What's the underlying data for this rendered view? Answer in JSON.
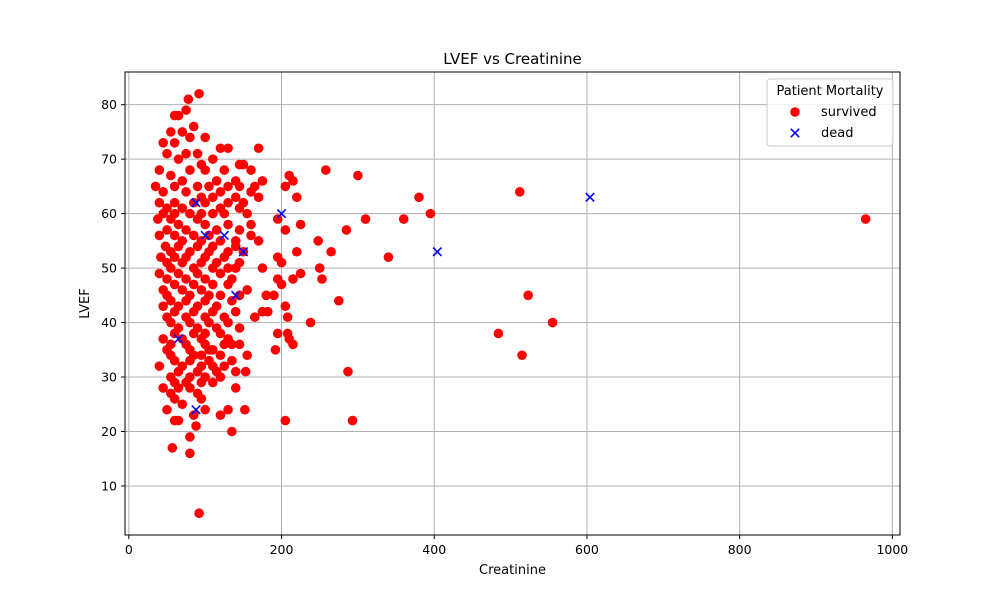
{
  "chart_data": {
    "type": "scatter",
    "title": "LVEF vs Creatinine",
    "xlabel": "Creatinine",
    "ylabel": "LVEF",
    "xlim": [
      -5,
      1010
    ],
    "ylim": [
      1,
      86
    ],
    "xticks": [
      0,
      200,
      400,
      600,
      800,
      1000
    ],
    "yticks": [
      10,
      20,
      30,
      40,
      50,
      60,
      70,
      80
    ],
    "grid": true,
    "legend": {
      "title": "Patient Mortality",
      "position": "top-right"
    },
    "series": [
      {
        "name": "survived",
        "marker": "circle",
        "color": "#ff0000",
        "points": [
          [
            92,
            82
          ],
          [
            78,
            81
          ],
          [
            75,
            79
          ],
          [
            65,
            78
          ],
          [
            60,
            78
          ],
          [
            85,
            76
          ],
          [
            55,
            75
          ],
          [
            70,
            75
          ],
          [
            80,
            74
          ],
          [
            100,
            74
          ],
          [
            45,
            73
          ],
          [
            60,
            73
          ],
          [
            120,
            72
          ],
          [
            130,
            72
          ],
          [
            170,
            72
          ],
          [
            50,
            71
          ],
          [
            75,
            71
          ],
          [
            90,
            71
          ],
          [
            110,
            70
          ],
          [
            65,
            70
          ],
          [
            95,
            69
          ],
          [
            145,
            69
          ],
          [
            150,
            69
          ],
          [
            160,
            68
          ],
          [
            40,
            68
          ],
          [
            80,
            68
          ],
          [
            100,
            68
          ],
          [
            125,
            68
          ],
          [
            258,
            68
          ],
          [
            55,
            67
          ],
          [
            210,
            67
          ],
          [
            300,
            67
          ],
          [
            70,
            66
          ],
          [
            115,
            66
          ],
          [
            140,
            66
          ],
          [
            175,
            66
          ],
          [
            215,
            66
          ],
          [
            35,
            65
          ],
          [
            60,
            65
          ],
          [
            90,
            65
          ],
          [
            105,
            65
          ],
          [
            130,
            65
          ],
          [
            145,
            65
          ],
          [
            165,
            65
          ],
          [
            205,
            65
          ],
          [
            45,
            64
          ],
          [
            75,
            64
          ],
          [
            120,
            64
          ],
          [
            160,
            64
          ],
          [
            512,
            64
          ],
          [
            95,
            63
          ],
          [
            110,
            63
          ],
          [
            140,
            63
          ],
          [
            170,
            63
          ],
          [
            220,
            63
          ],
          [
            380,
            63
          ],
          [
            40,
            62
          ],
          [
            60,
            62
          ],
          [
            85,
            62
          ],
          [
            100,
            62
          ],
          [
            130,
            62
          ],
          [
            150,
            62
          ],
          [
            50,
            61
          ],
          [
            70,
            61
          ],
          [
            120,
            61
          ],
          [
            145,
            61
          ],
          [
            155,
            60
          ],
          [
            45,
            60
          ],
          [
            60,
            60
          ],
          [
            80,
            60
          ],
          [
            95,
            60
          ],
          [
            110,
            60
          ],
          [
            125,
            60
          ],
          [
            395,
            60
          ],
          [
            38,
            59
          ],
          [
            55,
            59
          ],
          [
            90,
            59
          ],
          [
            195,
            59
          ],
          [
            310,
            59
          ],
          [
            360,
            59
          ],
          [
            965,
            59
          ],
          [
            65,
            58
          ],
          [
            100,
            58
          ],
          [
            130,
            58
          ],
          [
            160,
            58
          ],
          [
            225,
            58
          ],
          [
            50,
            57
          ],
          [
            75,
            57
          ],
          [
            115,
            57
          ],
          [
            145,
            57
          ],
          [
            205,
            57
          ],
          [
            285,
            57
          ],
          [
            40,
            56
          ],
          [
            60,
            56
          ],
          [
            85,
            56
          ],
          [
            105,
            56
          ],
          [
            160,
            56
          ],
          [
            70,
            55
          ],
          [
            95,
            55
          ],
          [
            120,
            55
          ],
          [
            140,
            55
          ],
          [
            170,
            55
          ],
          [
            248,
            55
          ],
          [
            48,
            54
          ],
          [
            65,
            54
          ],
          [
            90,
            54
          ],
          [
            110,
            54
          ],
          [
            140,
            54
          ],
          [
            55,
            53
          ],
          [
            80,
            53
          ],
          [
            105,
            53
          ],
          [
            130,
            53
          ],
          [
            150,
            53
          ],
          [
            220,
            53
          ],
          [
            265,
            53
          ],
          [
            42,
            52
          ],
          [
            60,
            52
          ],
          [
            75,
            52
          ],
          [
            100,
            52
          ],
          [
            125,
            52
          ],
          [
            195,
            52
          ],
          [
            340,
            52
          ],
          [
            50,
            51
          ],
          [
            70,
            51
          ],
          [
            95,
            51
          ],
          [
            115,
            51
          ],
          [
            145,
            51
          ],
          [
            200,
            51
          ],
          [
            55,
            50
          ],
          [
            85,
            50
          ],
          [
            110,
            50
          ],
          [
            130,
            50
          ],
          [
            140,
            50
          ],
          [
            250,
            50
          ],
          [
            175,
            50
          ],
          [
            40,
            49
          ],
          [
            65,
            49
          ],
          [
            90,
            49
          ],
          [
            120,
            49
          ],
          [
            225,
            49
          ],
          [
            50,
            48
          ],
          [
            75,
            48
          ],
          [
            100,
            48
          ],
          [
            135,
            48
          ],
          [
            195,
            48
          ],
          [
            215,
            48
          ],
          [
            253,
            48
          ],
          [
            60,
            47
          ],
          [
            85,
            47
          ],
          [
            110,
            47
          ],
          [
            130,
            47
          ],
          [
            200,
            47
          ],
          [
            45,
            46
          ],
          [
            70,
            46
          ],
          [
            95,
            46
          ],
          [
            155,
            46
          ],
          [
            50,
            45
          ],
          [
            80,
            45
          ],
          [
            105,
            45
          ],
          [
            120,
            45
          ],
          [
            145,
            45
          ],
          [
            180,
            45
          ],
          [
            190,
            45
          ],
          [
            523,
            45
          ],
          [
            55,
            44
          ],
          [
            75,
            44
          ],
          [
            100,
            44
          ],
          [
            135,
            44
          ],
          [
            275,
            44
          ],
          [
            45,
            43
          ],
          [
            65,
            43
          ],
          [
            90,
            43
          ],
          [
            115,
            43
          ],
          [
            205,
            43
          ],
          [
            60,
            42
          ],
          [
            85,
            42
          ],
          [
            110,
            42
          ],
          [
            140,
            42
          ],
          [
            175,
            42
          ],
          [
            182,
            42
          ],
          [
            50,
            41
          ],
          [
            75,
            41
          ],
          [
            100,
            41
          ],
          [
            125,
            41
          ],
          [
            165,
            41
          ],
          [
            208,
            41
          ],
          [
            55,
            40
          ],
          [
            80,
            40
          ],
          [
            105,
            40
          ],
          [
            130,
            40
          ],
          [
            238,
            40
          ],
          [
            555,
            40
          ],
          [
            65,
            39
          ],
          [
            90,
            39
          ],
          [
            115,
            39
          ],
          [
            145,
            39
          ],
          [
            60,
            38
          ],
          [
            85,
            38
          ],
          [
            100,
            38
          ],
          [
            120,
            38
          ],
          [
            195,
            38
          ],
          [
            208,
            38
          ],
          [
            484,
            38
          ],
          [
            45,
            37
          ],
          [
            70,
            37
          ],
          [
            95,
            37
          ],
          [
            130,
            37
          ],
          [
            210,
            37
          ],
          [
            55,
            36
          ],
          [
            75,
            36
          ],
          [
            100,
            36
          ],
          [
            125,
            36
          ],
          [
            135,
            36
          ],
          [
            145,
            36
          ],
          [
            215,
            36
          ],
          [
            50,
            35
          ],
          [
            80,
            35
          ],
          [
            105,
            35
          ],
          [
            110,
            35
          ],
          [
            192,
            35
          ],
          [
            55,
            34
          ],
          [
            85,
            34
          ],
          [
            95,
            34
          ],
          [
            120,
            34
          ],
          [
            155,
            34
          ],
          [
            515,
            34
          ],
          [
            60,
            33
          ],
          [
            80,
            33
          ],
          [
            105,
            33
          ],
          [
            135,
            33
          ],
          [
            40,
            32
          ],
          [
            70,
            32
          ],
          [
            95,
            32
          ],
          [
            110,
            32
          ],
          [
            125,
            32
          ],
          [
            65,
            31
          ],
          [
            90,
            31
          ],
          [
            115,
            31
          ],
          [
            140,
            31
          ],
          [
            153,
            31
          ],
          [
            287,
            31
          ],
          [
            55,
            30
          ],
          [
            80,
            30
          ],
          [
            100,
            30
          ],
          [
            120,
            30
          ],
          [
            60,
            29
          ],
          [
            75,
            29
          ],
          [
            95,
            29
          ],
          [
            110,
            29
          ],
          [
            65,
            28
          ],
          [
            80,
            28
          ],
          [
            140,
            28
          ],
          [
            45,
            28
          ],
          [
            55,
            27
          ],
          [
            90,
            27
          ],
          [
            60,
            26
          ],
          [
            95,
            26
          ],
          [
            70,
            25
          ],
          [
            50,
            24
          ],
          [
            100,
            24
          ],
          [
            130,
            24
          ],
          [
            152,
            24
          ],
          [
            85,
            23
          ],
          [
            120,
            23
          ],
          [
            65,
            22
          ],
          [
            205,
            22
          ],
          [
            293,
            22
          ],
          [
            60,
            22
          ],
          [
            88,
            21
          ],
          [
            135,
            20
          ],
          [
            80,
            19
          ],
          [
            57,
            17
          ],
          [
            80,
            16
          ],
          [
            92,
            5
          ]
        ]
      },
      {
        "name": "dead",
        "marker": "x",
        "color": "#0000ff",
        "points": [
          [
            88,
            62
          ],
          [
            200,
            60
          ],
          [
            100,
            56
          ],
          [
            125,
            56
          ],
          [
            150,
            53
          ],
          [
            140,
            45
          ],
          [
            65,
            37
          ],
          [
            88,
            24
          ],
          [
            404,
            53
          ],
          [
            604,
            63
          ]
        ]
      }
    ]
  }
}
